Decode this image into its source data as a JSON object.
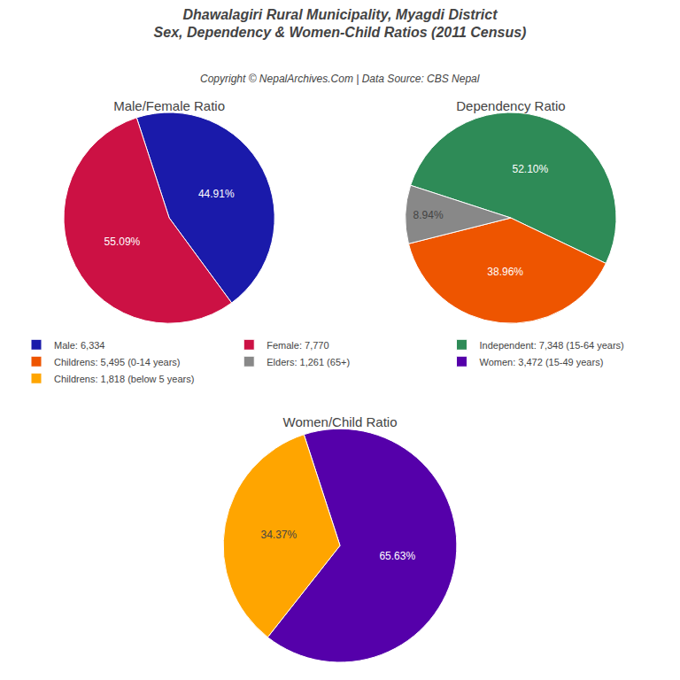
{
  "title": "Dhawalagiri Rural Municipality, Myagdi District",
  "subtitle": "Sex, Dependency & Women-Child Ratios (2011 Census)",
  "annotations": [
    "Copyright © NepalArchives.Com | Data Source: CBS Nepal"
  ],
  "chart_data": [
    {
      "type": "pie",
      "title": "Male/Female Ratio",
      "categories": [
        "Male: 6,334",
        "Female: 7,770"
      ],
      "values": [
        44.91,
        55.09
      ],
      "value_labels": [
        "44.91%",
        "55.09%"
      ],
      "colors": [
        "#1a1aaa",
        "#CC1144"
      ],
      "data_labels": true,
      "legend": "center"
    },
    {
      "type": "pie",
      "title": "Dependency Ratio",
      "categories": [
        "Independent: 7,348 (15-64 years)",
        "Childrens: 5,495 (0-14 years)",
        "Elders: 1,261 (65+)"
      ],
      "values": [
        52.1,
        38.96,
        8.94
      ],
      "value_labels": [
        "52.10%",
        "38.96%",
        "8.94%"
      ],
      "colors": [
        "#2E8B57",
        "#EE5500",
        "#888888"
      ],
      "data_labels": true,
      "legend": "center"
    },
    {
      "type": "pie",
      "title": "Women/Child Ratio",
      "categories": [
        "Women: 3,472 (15-49 years)",
        "Childrens: 1,818 (below 5 years)"
      ],
      "values": [
        65.63,
        34.37
      ],
      "value_labels": [
        "65.63%",
        "34.37%"
      ],
      "colors": [
        "#5500AA",
        "#FFA500"
      ],
      "data_labels": true,
      "legend": "center"
    }
  ]
}
